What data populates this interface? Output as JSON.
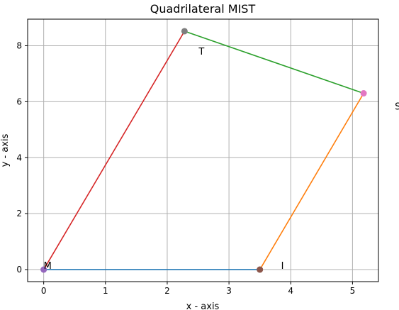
{
  "chart_data": {
    "type": "line",
    "title": "Quadrilateral MIST",
    "xlabel": "x - axis",
    "ylabel": "y - axis",
    "xlim": [
      -0.26,
      5.42
    ],
    "ylim": [
      -0.43,
      8.95
    ],
    "x_ticks": [
      0,
      1,
      2,
      3,
      4,
      5
    ],
    "y_ticks": [
      0,
      2,
      4,
      6,
      8
    ],
    "grid": true,
    "vertices": [
      {
        "name": "M",
        "x": 0.0,
        "y": 0.0,
        "color": "#9467bd"
      },
      {
        "name": "I",
        "x": 3.5,
        "y": 0.0,
        "color": "#8c564b"
      },
      {
        "name": "S",
        "x": 5.18,
        "y": 6.3,
        "color": "#e377c2"
      },
      {
        "name": "T",
        "x": 2.28,
        "y": 8.52,
        "color": "#7f7f7f"
      }
    ],
    "edges": [
      {
        "from": "M",
        "to": "I",
        "color": "#1f77b4"
      },
      {
        "from": "I",
        "to": "S",
        "color": "#ff7f0e"
      },
      {
        "from": "S",
        "to": "T",
        "color": "#2ca02c"
      },
      {
        "from": "T",
        "to": "M",
        "color": "#d62728"
      }
    ]
  }
}
